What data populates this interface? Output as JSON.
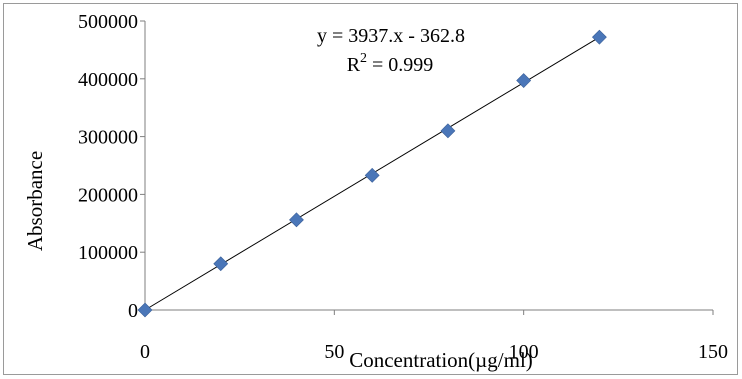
{
  "chart_data": {
    "type": "scatter",
    "title": "",
    "xlabel": "Concentration(µg/ml)",
    "ylabel": "Absorbance",
    "xlim": [
      0,
      150
    ],
    "ylim": [
      0,
      500000
    ],
    "xticks": [
      0,
      50,
      100,
      150
    ],
    "yticks": [
      0,
      100000,
      200000,
      300000,
      400000,
      500000
    ],
    "xtick_labels": [
      "0",
      "50",
      "100",
      "150"
    ],
    "ytick_labels": [
      "0",
      "100000",
      "200000",
      "300000",
      "400000",
      "500000"
    ],
    "grid": false,
    "legend": "none",
    "marker": "diamond",
    "marker_color": "#4a76b8",
    "trendline_color": "#000000",
    "series": [
      {
        "x": [
          0,
          20,
          40,
          60,
          80,
          100,
          120
        ],
        "y": [
          0,
          80000,
          156000,
          233000,
          310000,
          397000,
          472000
        ]
      }
    ],
    "trendline": {
      "slope": 3937,
      "intercept": -362.8
    },
    "annotations": {
      "equation": "y = 3937.x - 362.8",
      "r2_prefix": "R",
      "r2_sup": "2",
      "r2_suffix": " = 0.999"
    }
  }
}
